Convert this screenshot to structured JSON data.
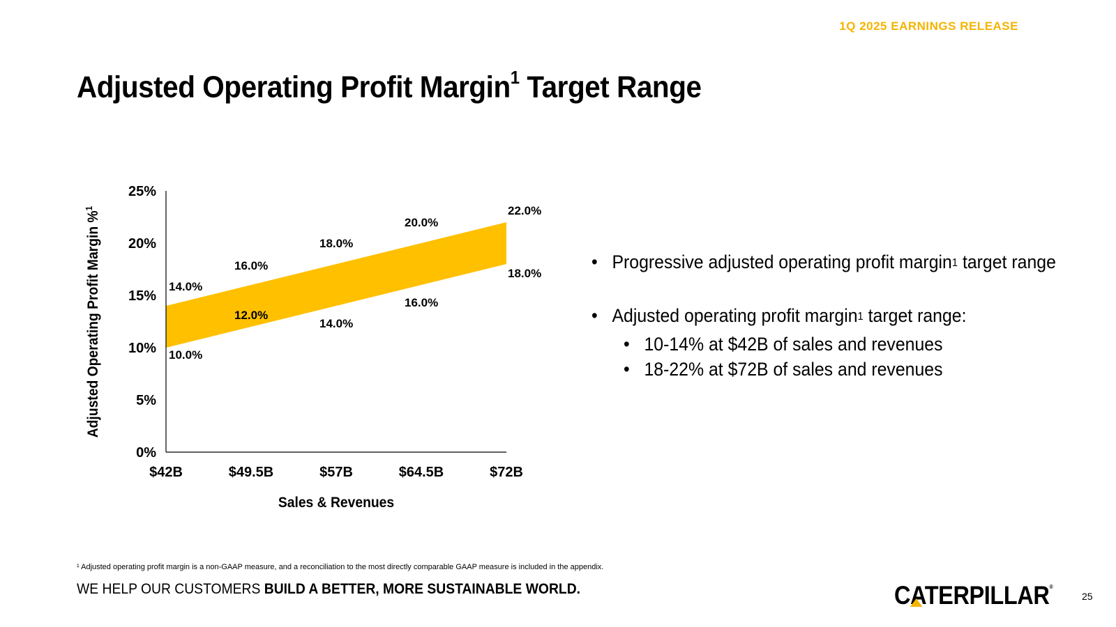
{
  "header": {
    "release_label": "1Q 2025 EARNINGS RELEASE"
  },
  "title": {
    "main": "Adjusted Operating Profit Margin",
    "sup": "1",
    "tail": " Target Range"
  },
  "chart_data": {
    "type": "area",
    "title": "",
    "xlabel": "Sales & Revenues",
    "ylabel": "Adjusted Operating Profit Margin %",
    "ylabel_sup": "1",
    "categories": [
      "$42B",
      "$49.5B",
      "$57B",
      "$64.5B",
      "$72B"
    ],
    "y_ticks": [
      "0%",
      "5%",
      "10%",
      "15%",
      "20%",
      "25%"
    ],
    "ylim": [
      0,
      25
    ],
    "series": [
      {
        "name": "Upper",
        "values": [
          14.0,
          16.0,
          18.0,
          20.0,
          22.0
        ],
        "labels": [
          "14.0%",
          "16.0%",
          "18.0%",
          "20.0%",
          "22.0%"
        ]
      },
      {
        "name": "Lower",
        "values": [
          10.0,
          12.0,
          14.0,
          16.0,
          18.0
        ],
        "labels": [
          "10.0%",
          "12.0%",
          "14.0%",
          "16.0%",
          "18.0%"
        ]
      }
    ],
    "band_color": "#FFC000"
  },
  "bullets": {
    "item1": {
      "text": "Progressive adjusted operating profit margin",
      "sup": "1",
      "tail": " target range"
    },
    "item2": {
      "text": "Adjusted operating profit margin",
      "sup": "1",
      "tail": " target range:"
    },
    "sub": [
      "10-14% at $42B of sales and revenues",
      "18-22% at $72B of sales and revenues"
    ]
  },
  "footnote": "¹ Adjusted operating profit margin is a non-GAAP measure, and a reconciliation to the most directly comparable GAAP measure is included in the appendix.",
  "tagline": {
    "plain": "WE HELP OUR CUSTOMERS ",
    "bold": "BUILD A BETTER, MORE SUSTAINABLE WORLD."
  },
  "logo": {
    "text": "CATERPILLAR",
    "reg": "®"
  },
  "page_number": "25",
  "colors": {
    "accent": "#F4B400",
    "band": "#FFC000"
  }
}
